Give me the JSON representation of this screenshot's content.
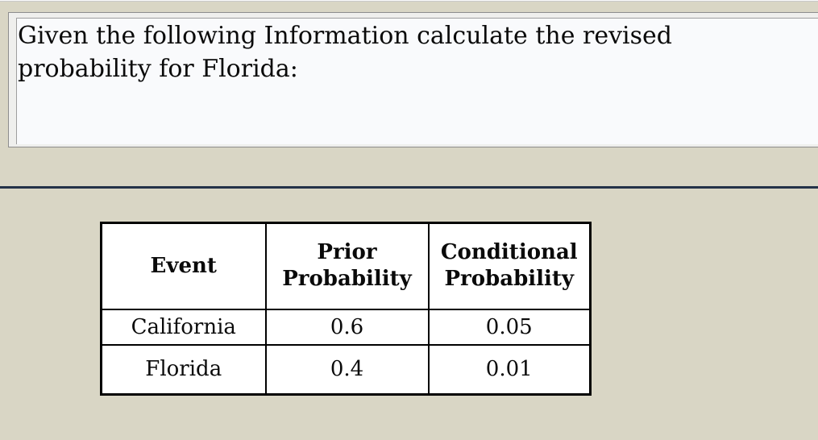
{
  "page": {
    "background_color": "#d9d6c5",
    "divider_color": "#243349"
  },
  "question": {
    "text": "Given the following Information calculate the revised probability for Florida:",
    "box_background": "#f9fafc"
  },
  "table": {
    "border_color": "#000000",
    "cell_background": "#ffffff",
    "headers": [
      "Event",
      "Prior Probability",
      "Conditional Probability"
    ],
    "rows": [
      [
        "California",
        "0.6",
        "0.05"
      ],
      [
        "Florida",
        "0.4",
        "0.01"
      ]
    ]
  }
}
